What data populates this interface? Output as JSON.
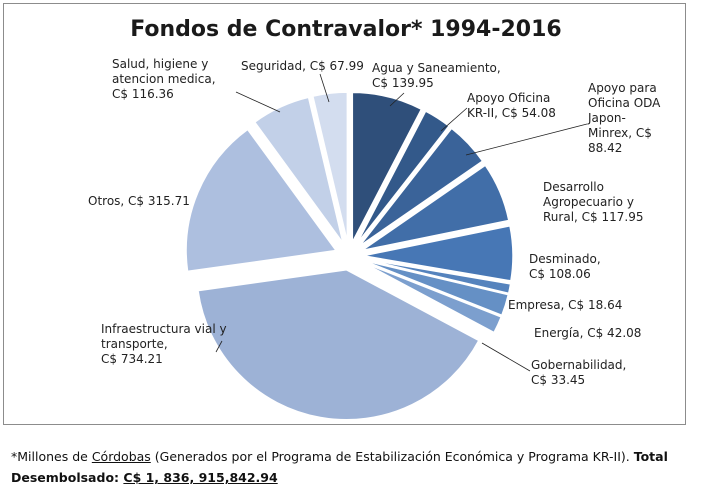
{
  "chart_data": {
    "type": "pie",
    "title": "Fondos de Contravalor* 1994-2016",
    "unit_prefix": "C$",
    "series": [
      {
        "name": "Agua y Saneamiento,",
        "value": 139.95,
        "label": "Agua y Saneamiento,\nC$ 139.95",
        "color": "#2f4f7a"
      },
      {
        "name": "Apoyo Oficina KR-II,",
        "value": 54.08,
        "label": "Apoyo Oficina\nKR-II, C$ 54.08",
        "color": "#33598a"
      },
      {
        "name": "Apoyo para Oficina ODA Japon-Minrex,",
        "value": 88.42,
        "label": "Apoyo para\nOficina ODA\nJapon-\nMinrex, C$\n88.42",
        "color": "#3a6399"
      },
      {
        "name": "Desarrollo Agropecuario y Rural,",
        "value": 117.95,
        "label": "Desarrollo\nAgropecuario y\nRural, C$ 117.95",
        "color": "#416ea8"
      },
      {
        "name": "Desminado,",
        "value": 108.06,
        "label": "Desminado,\nC$ 108.06",
        "color": "#4777b5"
      },
      {
        "name": "Empresa,",
        "value": 18.64,
        "label": "Empresa, C$ 18.64",
        "color": "#5583bd"
      },
      {
        "name": "Energía,",
        "value": 42.08,
        "label": "Energía, C$ 42.08",
        "color": "#6590c5"
      },
      {
        "name": "Gobernabilidad,",
        "value": 33.45,
        "label": "Gobernabilidad,\nC$ 33.45",
        "color": "#7c9fce"
      },
      {
        "name": "Infraestructura vial y transporte,",
        "value": 734.21,
        "label": "Infraestructura vial y\ntransporte,\nC$ 734.21",
        "color": "#9db2d6"
      },
      {
        "name": "Otros,",
        "value": 315.71,
        "label": "Otros,  C$ 315.71",
        "color": "#adbfdf"
      },
      {
        "name": "Salud, higiene y atencion medica,",
        "value": 116.36,
        "label": "Salud, higiene y\natencion medica,\nC$ 116.36",
        "color": "#c2d0e8"
      },
      {
        "name": "Seguridad,",
        "value": 67.99,
        "label": "Seguridad,  C$ 67.99",
        "color": "#d3ddef"
      }
    ]
  },
  "footnote": {
    "prefix": "*Millones de ",
    "currency_word": "Córdobas",
    "middle": " (Generados por el Programa de Estabilización Económica y Programa KR-II). ",
    "total_label": "Total Desembolsado: ",
    "total_value": "C$ 1, 836, 915,842.94"
  }
}
